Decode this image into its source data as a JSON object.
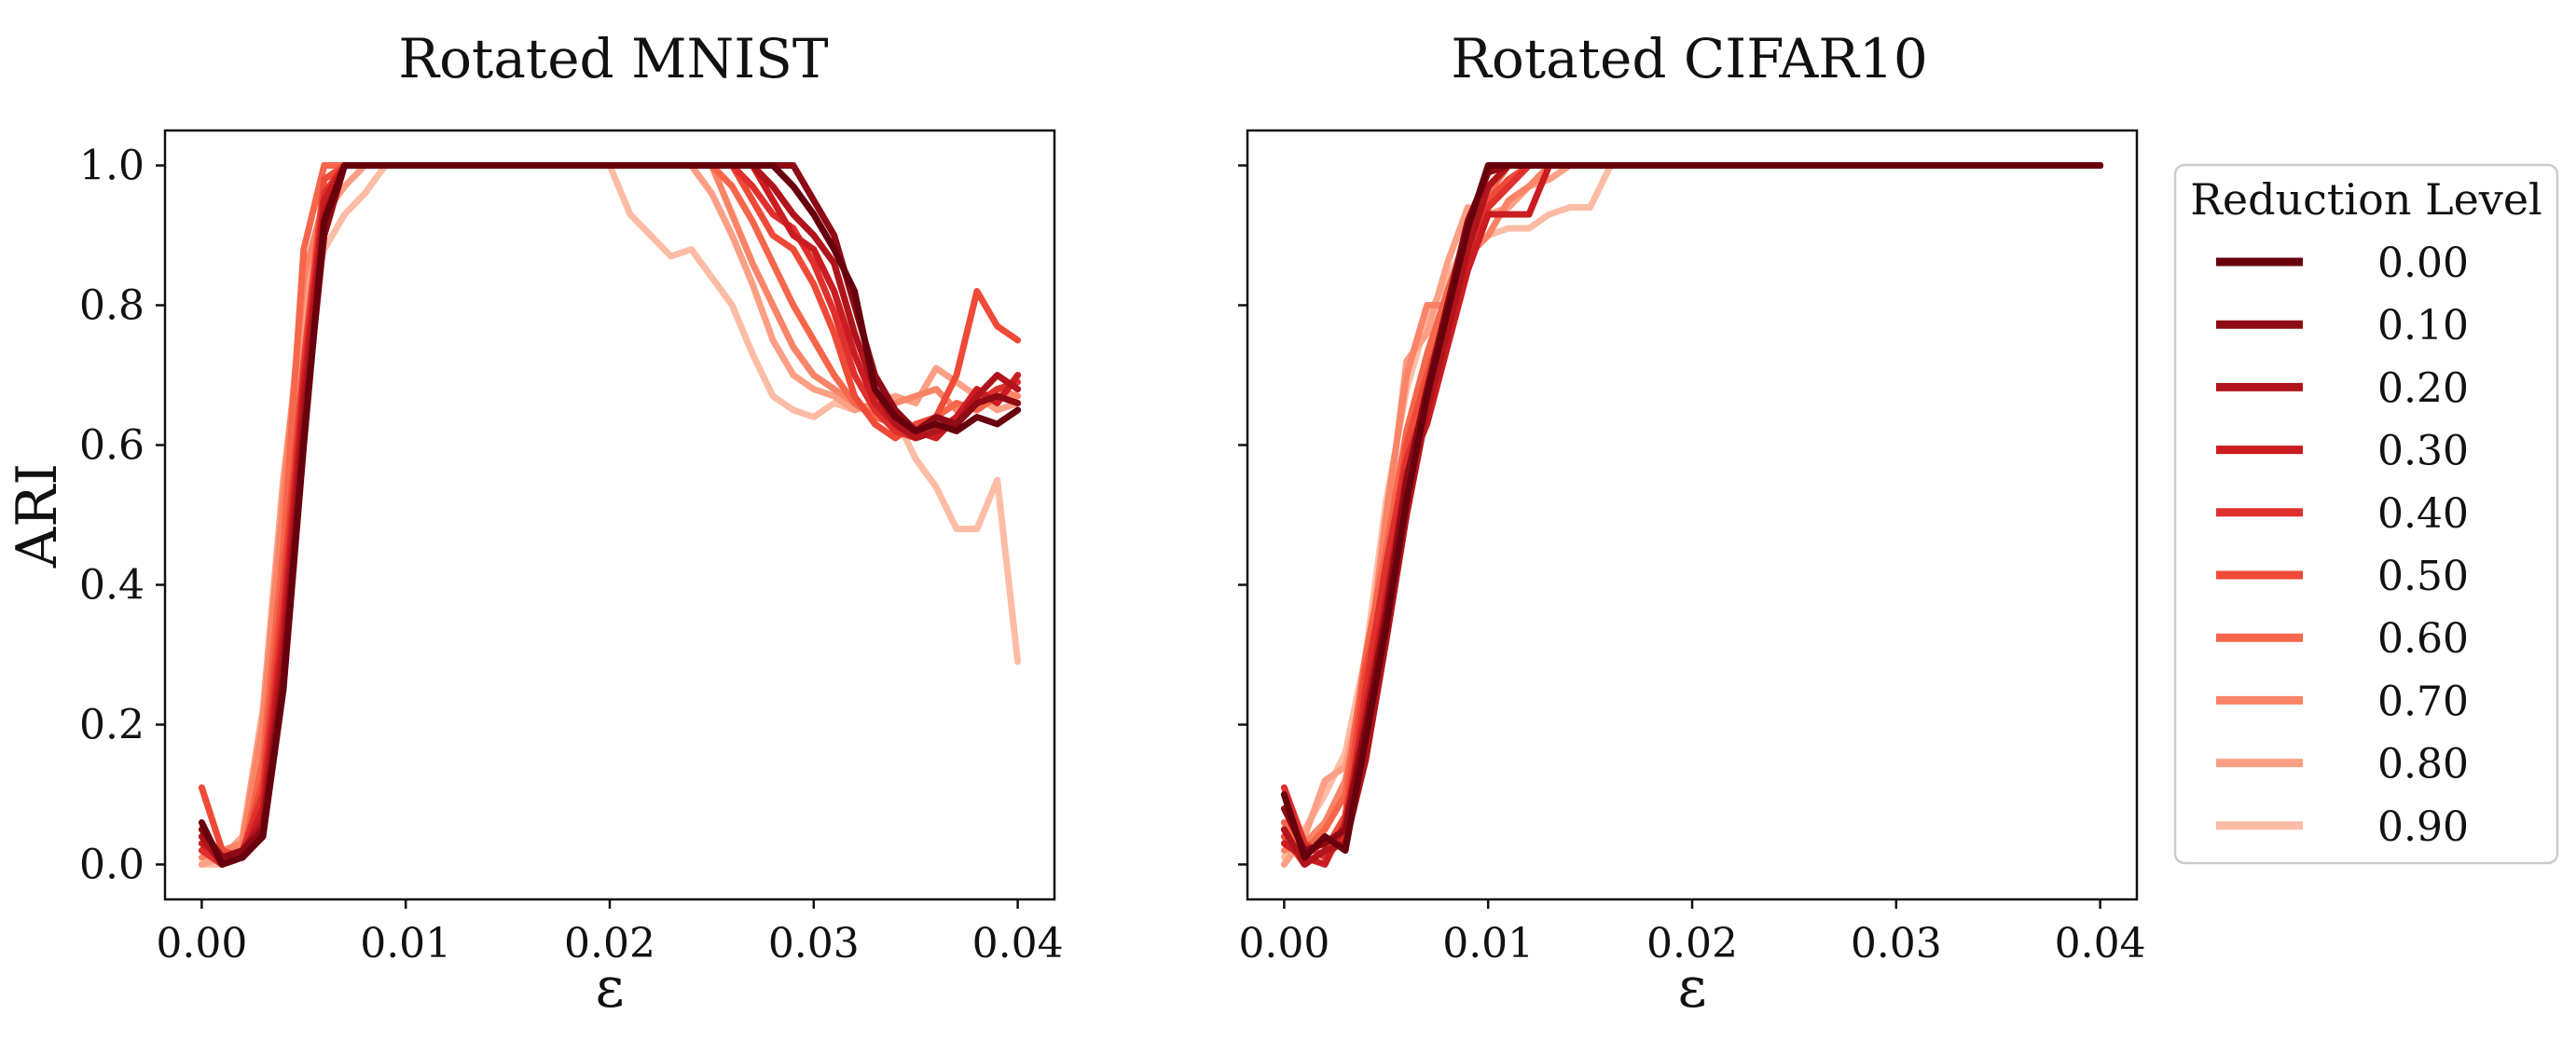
{
  "chart_data": [
    {
      "type": "line",
      "title": "Rotated MNIST",
      "xlabel": "ε",
      "ylabel": "ARI",
      "xlim": [
        -0.0018,
        0.0418
      ],
      "ylim": [
        -0.05,
        1.05
      ],
      "xticks": [
        0.0,
        0.01,
        0.02,
        0.03,
        0.04
      ],
      "xtick_labels": [
        "0.00",
        "0.01",
        "0.02",
        "0.03",
        "0.04"
      ],
      "yticks": [
        0.0,
        0.2,
        0.4,
        0.6,
        0.8,
        1.0
      ],
      "ytick_labels": [
        "0.0",
        "0.2",
        "0.4",
        "0.6",
        "0.8",
        "1.0"
      ],
      "grid": false,
      "x": [
        0.0,
        0.001,
        0.002,
        0.003,
        0.004,
        0.005,
        0.006,
        0.007,
        0.008,
        0.009,
        0.01,
        0.011,
        0.012,
        0.013,
        0.014,
        0.015,
        0.016,
        0.017,
        0.018,
        0.019,
        0.02,
        0.021,
        0.022,
        0.023,
        0.024,
        0.025,
        0.026,
        0.027,
        0.028,
        0.029,
        0.03,
        0.031,
        0.032,
        0.033,
        0.034,
        0.035,
        0.036,
        0.037,
        0.038,
        0.039,
        0.04
      ],
      "series": [
        {
          "name": "0.00",
          "values": [
            0.06,
            0.0,
            0.01,
            0.04,
            0.25,
            0.6,
            0.92,
            1.0,
            1.0,
            1.0,
            1.0,
            1.0,
            1.0,
            1.0,
            1.0,
            1.0,
            1.0,
            1.0,
            1.0,
            1.0,
            1.0,
            1.0,
            1.0,
            1.0,
            1.0,
            1.0,
            1.0,
            1.0,
            1.0,
            0.97,
            0.93,
            0.88,
            0.82,
            0.68,
            0.64,
            0.62,
            0.63,
            0.62,
            0.64,
            0.63,
            0.65
          ]
        },
        {
          "name": "0.10",
          "values": [
            0.05,
            0.01,
            0.02,
            0.05,
            0.27,
            0.62,
            0.9,
            1.0,
            1.0,
            1.0,
            1.0,
            1.0,
            1.0,
            1.0,
            1.0,
            1.0,
            1.0,
            1.0,
            1.0,
            1.0,
            1.0,
            1.0,
            1.0,
            1.0,
            1.0,
            1.0,
            1.0,
            1.0,
            1.0,
            1.0,
            0.95,
            0.9,
            0.8,
            0.7,
            0.65,
            0.62,
            0.64,
            0.63,
            0.66,
            0.67,
            0.66
          ]
        },
        {
          "name": "0.20",
          "values": [
            0.04,
            0.0,
            0.02,
            0.06,
            0.3,
            0.65,
            0.93,
            1.0,
            1.0,
            1.0,
            1.0,
            1.0,
            1.0,
            1.0,
            1.0,
            1.0,
            1.0,
            1.0,
            1.0,
            1.0,
            1.0,
            1.0,
            1.0,
            1.0,
            1.0,
            1.0,
            1.0,
            1.0,
            0.97,
            0.93,
            0.9,
            0.86,
            0.76,
            0.68,
            0.63,
            0.61,
            0.62,
            0.63,
            0.67,
            0.7,
            0.68
          ]
        },
        {
          "name": "0.30",
          "values": [
            0.03,
            0.01,
            0.01,
            0.08,
            0.33,
            0.68,
            0.95,
            1.0,
            1.0,
            1.0,
            1.0,
            1.0,
            1.0,
            1.0,
            1.0,
            1.0,
            1.0,
            1.0,
            1.0,
            1.0,
            1.0,
            1.0,
            1.0,
            1.0,
            1.0,
            1.0,
            1.0,
            1.0,
            0.95,
            0.9,
            0.88,
            0.82,
            0.73,
            0.66,
            0.63,
            0.62,
            0.61,
            0.64,
            0.68,
            0.66,
            0.7
          ]
        },
        {
          "name": "0.40",
          "values": [
            0.02,
            0.0,
            0.02,
            0.1,
            0.36,
            0.7,
            0.96,
            1.0,
            1.0,
            1.0,
            1.0,
            1.0,
            1.0,
            1.0,
            1.0,
            1.0,
            1.0,
            1.0,
            1.0,
            1.0,
            1.0,
            1.0,
            1.0,
            1.0,
            1.0,
            1.0,
            1.0,
            0.97,
            0.93,
            0.91,
            0.86,
            0.79,
            0.7,
            0.65,
            0.62,
            0.61,
            0.62,
            0.64,
            0.66,
            0.68,
            0.69
          ]
        },
        {
          "name": "0.50",
          "values": [
            0.11,
            0.02,
            0.01,
            0.12,
            0.4,
            0.72,
            0.98,
            1.0,
            1.0,
            1.0,
            1.0,
            1.0,
            1.0,
            1.0,
            1.0,
            1.0,
            1.0,
            1.0,
            1.0,
            1.0,
            1.0,
            1.0,
            1.0,
            1.0,
            1.0,
            1.0,
            1.0,
            0.95,
            0.9,
            0.88,
            0.83,
            0.76,
            0.67,
            0.63,
            0.61,
            0.63,
            0.64,
            0.7,
            0.82,
            0.77,
            0.75
          ]
        },
        {
          "name": "0.60",
          "values": [
            0.02,
            0.01,
            0.01,
            0.15,
            0.45,
            0.88,
            1.0,
            1.0,
            1.0,
            1.0,
            1.0,
            1.0,
            1.0,
            1.0,
            1.0,
            1.0,
            1.0,
            1.0,
            1.0,
            1.0,
            1.0,
            1.0,
            1.0,
            1.0,
            1.0,
            1.0,
            0.97,
            0.92,
            0.86,
            0.8,
            0.75,
            0.7,
            0.66,
            0.64,
            0.63,
            0.62,
            0.64,
            0.66,
            0.65,
            0.67,
            0.66
          ]
        },
        {
          "name": "0.70",
          "values": [
            0.01,
            0.02,
            0.03,
            0.2,
            0.52,
            0.84,
            0.95,
            1.0,
            1.0,
            1.0,
            1.0,
            1.0,
            1.0,
            1.0,
            1.0,
            1.0,
            1.0,
            1.0,
            1.0,
            1.0,
            1.0,
            1.0,
            1.0,
            1.0,
            1.0,
            1.0,
            0.93,
            0.86,
            0.8,
            0.74,
            0.7,
            0.68,
            0.66,
            0.65,
            0.66,
            0.67,
            0.68,
            0.65,
            0.66,
            0.68,
            0.67
          ]
        },
        {
          "name": "0.80",
          "values": [
            0.0,
            0.01,
            0.04,
            0.22,
            0.55,
            0.8,
            0.93,
            0.97,
            1.0,
            1.0,
            1.0,
            1.0,
            1.0,
            1.0,
            1.0,
            1.0,
            1.0,
            1.0,
            1.0,
            1.0,
            1.0,
            1.0,
            1.0,
            1.0,
            1.0,
            0.96,
            0.9,
            0.83,
            0.75,
            0.7,
            0.68,
            0.67,
            0.65,
            0.66,
            0.67,
            0.66,
            0.71,
            0.69,
            0.67,
            0.65,
            0.66
          ]
        },
        {
          "name": "0.90",
          "values": [
            0.0,
            0.0,
            0.03,
            0.22,
            0.55,
            0.77,
            0.88,
            0.93,
            0.96,
            1.0,
            1.0,
            1.0,
            1.0,
            1.0,
            1.0,
            1.0,
            1.0,
            1.0,
            1.0,
            1.0,
            1.0,
            0.93,
            0.9,
            0.87,
            0.88,
            0.84,
            0.8,
            0.73,
            0.67,
            0.65,
            0.64,
            0.66,
            0.65,
            0.66,
            0.64,
            0.58,
            0.54,
            0.48,
            0.48,
            0.55,
            0.29
          ]
        }
      ]
    },
    {
      "type": "line",
      "title": "Rotated CIFAR10",
      "xlabel": "ε",
      "ylabel": "",
      "xlim": [
        -0.0018,
        0.0418
      ],
      "ylim": [
        -0.05,
        1.05
      ],
      "xticks": [
        0.0,
        0.01,
        0.02,
        0.03,
        0.04
      ],
      "xtick_labels": [
        "0.00",
        "0.01",
        "0.02",
        "0.03",
        "0.04"
      ],
      "yticks": [
        0.0,
        0.2,
        0.4,
        0.6,
        0.8,
        1.0
      ],
      "ytick_labels": [
        "",
        "",
        "",
        "",
        "",
        ""
      ],
      "grid": false,
      "x": [
        0.0,
        0.001,
        0.002,
        0.003,
        0.004,
        0.005,
        0.006,
        0.007,
        0.008,
        0.009,
        0.01,
        0.011,
        0.012,
        0.013,
        0.014,
        0.015,
        0.016,
        0.017,
        0.018,
        0.019,
        0.02,
        0.021,
        0.022,
        0.023,
        0.024,
        0.025,
        0.026,
        0.027,
        0.028,
        0.029,
        0.03,
        0.031,
        0.032,
        0.033,
        0.034,
        0.035,
        0.036,
        0.037,
        0.038,
        0.039,
        0.04
      ],
      "series": [
        {
          "name": "0.00",
          "values": [
            0.1,
            0.01,
            0.04,
            0.02,
            0.18,
            0.34,
            0.52,
            0.67,
            0.79,
            0.91,
            1.0,
            1.0,
            1.0,
            1.0,
            1.0,
            1.0,
            1.0,
            1.0,
            1.0,
            1.0,
            1.0,
            1.0,
            1.0,
            1.0,
            1.0,
            1.0,
            1.0,
            1.0,
            1.0,
            1.0,
            1.0,
            1.0,
            1.0,
            1.0,
            1.0,
            1.0,
            1.0,
            1.0,
            1.0,
            1.0,
            1.0
          ]
        },
        {
          "name": "0.10",
          "values": [
            0.08,
            0.02,
            0.03,
            0.05,
            0.2,
            0.36,
            0.55,
            0.68,
            0.8,
            0.92,
            0.99,
            1.0,
            1.0,
            1.0,
            1.0,
            1.0,
            1.0,
            1.0,
            1.0,
            1.0,
            1.0,
            1.0,
            1.0,
            1.0,
            1.0,
            1.0,
            1.0,
            1.0,
            1.0,
            1.0,
            1.0,
            1.0,
            1.0,
            1.0,
            1.0,
            1.0,
            1.0,
            1.0,
            1.0,
            1.0,
            1.0
          ]
        },
        {
          "name": "0.20",
          "values": [
            0.05,
            0.0,
            0.02,
            0.03,
            0.15,
            0.32,
            0.5,
            0.65,
            0.76,
            0.88,
            0.97,
            1.0,
            1.0,
            1.0,
            1.0,
            1.0,
            1.0,
            1.0,
            1.0,
            1.0,
            1.0,
            1.0,
            1.0,
            1.0,
            1.0,
            1.0,
            1.0,
            1.0,
            1.0,
            1.0,
            1.0,
            1.0,
            1.0,
            1.0,
            1.0,
            1.0,
            1.0,
            1.0,
            1.0,
            1.0,
            1.0
          ]
        },
        {
          "name": "0.30",
          "values": [
            0.03,
            0.01,
            0.0,
            0.06,
            0.22,
            0.38,
            0.56,
            0.63,
            0.74,
            0.85,
            0.93,
            0.93,
            0.93,
            1.0,
            1.0,
            1.0,
            1.0,
            1.0,
            1.0,
            1.0,
            1.0,
            1.0,
            1.0,
            1.0,
            1.0,
            1.0,
            1.0,
            1.0,
            1.0,
            1.0,
            1.0,
            1.0,
            1.0,
            1.0,
            1.0,
            1.0,
            1.0,
            1.0,
            1.0,
            1.0,
            1.0
          ]
        },
        {
          "name": "0.40",
          "values": [
            0.11,
            0.03,
            0.01,
            0.04,
            0.25,
            0.43,
            0.58,
            0.66,
            0.75,
            0.86,
            0.94,
            0.97,
            1.0,
            1.0,
            1.0,
            1.0,
            1.0,
            1.0,
            1.0,
            1.0,
            1.0,
            1.0,
            1.0,
            1.0,
            1.0,
            1.0,
            1.0,
            1.0,
            1.0,
            1.0,
            1.0,
            1.0,
            1.0,
            1.0,
            1.0,
            1.0,
            1.0,
            1.0,
            1.0,
            1.0,
            1.0
          ]
        },
        {
          "name": "0.50",
          "values": [
            0.04,
            0.0,
            0.02,
            0.07,
            0.28,
            0.4,
            0.6,
            0.7,
            0.79,
            0.89,
            0.95,
            0.98,
            1.0,
            1.0,
            1.0,
            1.0,
            1.0,
            1.0,
            1.0,
            1.0,
            1.0,
            1.0,
            1.0,
            1.0,
            1.0,
            1.0,
            1.0,
            1.0,
            1.0,
            1.0,
            1.0,
            1.0,
            1.0,
            1.0,
            1.0,
            1.0,
            1.0,
            1.0,
            1.0,
            1.0,
            1.0
          ]
        },
        {
          "name": "0.60",
          "values": [
            0.06,
            0.02,
            0.05,
            0.1,
            0.3,
            0.45,
            0.62,
            0.73,
            0.82,
            0.9,
            0.96,
            1.0,
            1.0,
            1.0,
            1.0,
            1.0,
            1.0,
            1.0,
            1.0,
            1.0,
            1.0,
            1.0,
            1.0,
            1.0,
            1.0,
            1.0,
            1.0,
            1.0,
            1.0,
            1.0,
            1.0,
            1.0,
            1.0,
            1.0,
            1.0,
            1.0,
            1.0,
            1.0,
            1.0,
            1.0,
            1.0
          ]
        },
        {
          "name": "0.70",
          "values": [
            0.02,
            0.03,
            0.06,
            0.12,
            0.26,
            0.5,
            0.7,
            0.8,
            0.8,
            0.87,
            0.9,
            0.95,
            0.97,
            1.0,
            1.0,
            1.0,
            1.0,
            1.0,
            1.0,
            1.0,
            1.0,
            1.0,
            1.0,
            1.0,
            1.0,
            1.0,
            1.0,
            1.0,
            1.0,
            1.0,
            1.0,
            1.0,
            1.0,
            1.0,
            1.0,
            1.0,
            1.0,
            1.0,
            1.0,
            1.0,
            1.0
          ]
        },
        {
          "name": "0.80",
          "values": [
            0.0,
            0.04,
            0.12,
            0.14,
            0.27,
            0.48,
            0.72,
            0.76,
            0.86,
            0.94,
            0.93,
            0.94,
            0.97,
            0.98,
            1.0,
            1.0,
            1.0,
            1.0,
            1.0,
            1.0,
            1.0,
            1.0,
            1.0,
            1.0,
            1.0,
            1.0,
            1.0,
            1.0,
            1.0,
            1.0,
            1.0,
            1.0,
            1.0,
            1.0,
            1.0,
            1.0,
            1.0,
            1.0,
            1.0,
            1.0,
            1.0
          ]
        },
        {
          "name": "0.90",
          "values": [
            0.01,
            0.05,
            0.1,
            0.16,
            0.3,
            0.52,
            0.68,
            0.78,
            0.84,
            0.89,
            0.9,
            0.91,
            0.91,
            0.93,
            0.94,
            0.94,
            1.0,
            1.0,
            1.0,
            1.0,
            1.0,
            1.0,
            1.0,
            1.0,
            1.0,
            1.0,
            1.0,
            1.0,
            1.0,
            1.0,
            1.0,
            1.0,
            1.0,
            1.0,
            1.0,
            1.0,
            1.0,
            1.0,
            1.0,
            1.0,
            1.0
          ]
        }
      ]
    }
  ],
  "legend": {
    "title": "Reduction Level",
    "placement": "right",
    "entries": [
      "0.00",
      "0.10",
      "0.20",
      "0.30",
      "0.40",
      "0.50",
      "0.60",
      "0.70",
      "0.80",
      "0.90"
    ],
    "colors": [
      "#67000d",
      "#8e0a14",
      "#b1141b",
      "#cb1c22",
      "#e0302d",
      "#ef4a37",
      "#f6664b",
      "#fa8467",
      "#fc9f85",
      "#fdbca5"
    ]
  }
}
